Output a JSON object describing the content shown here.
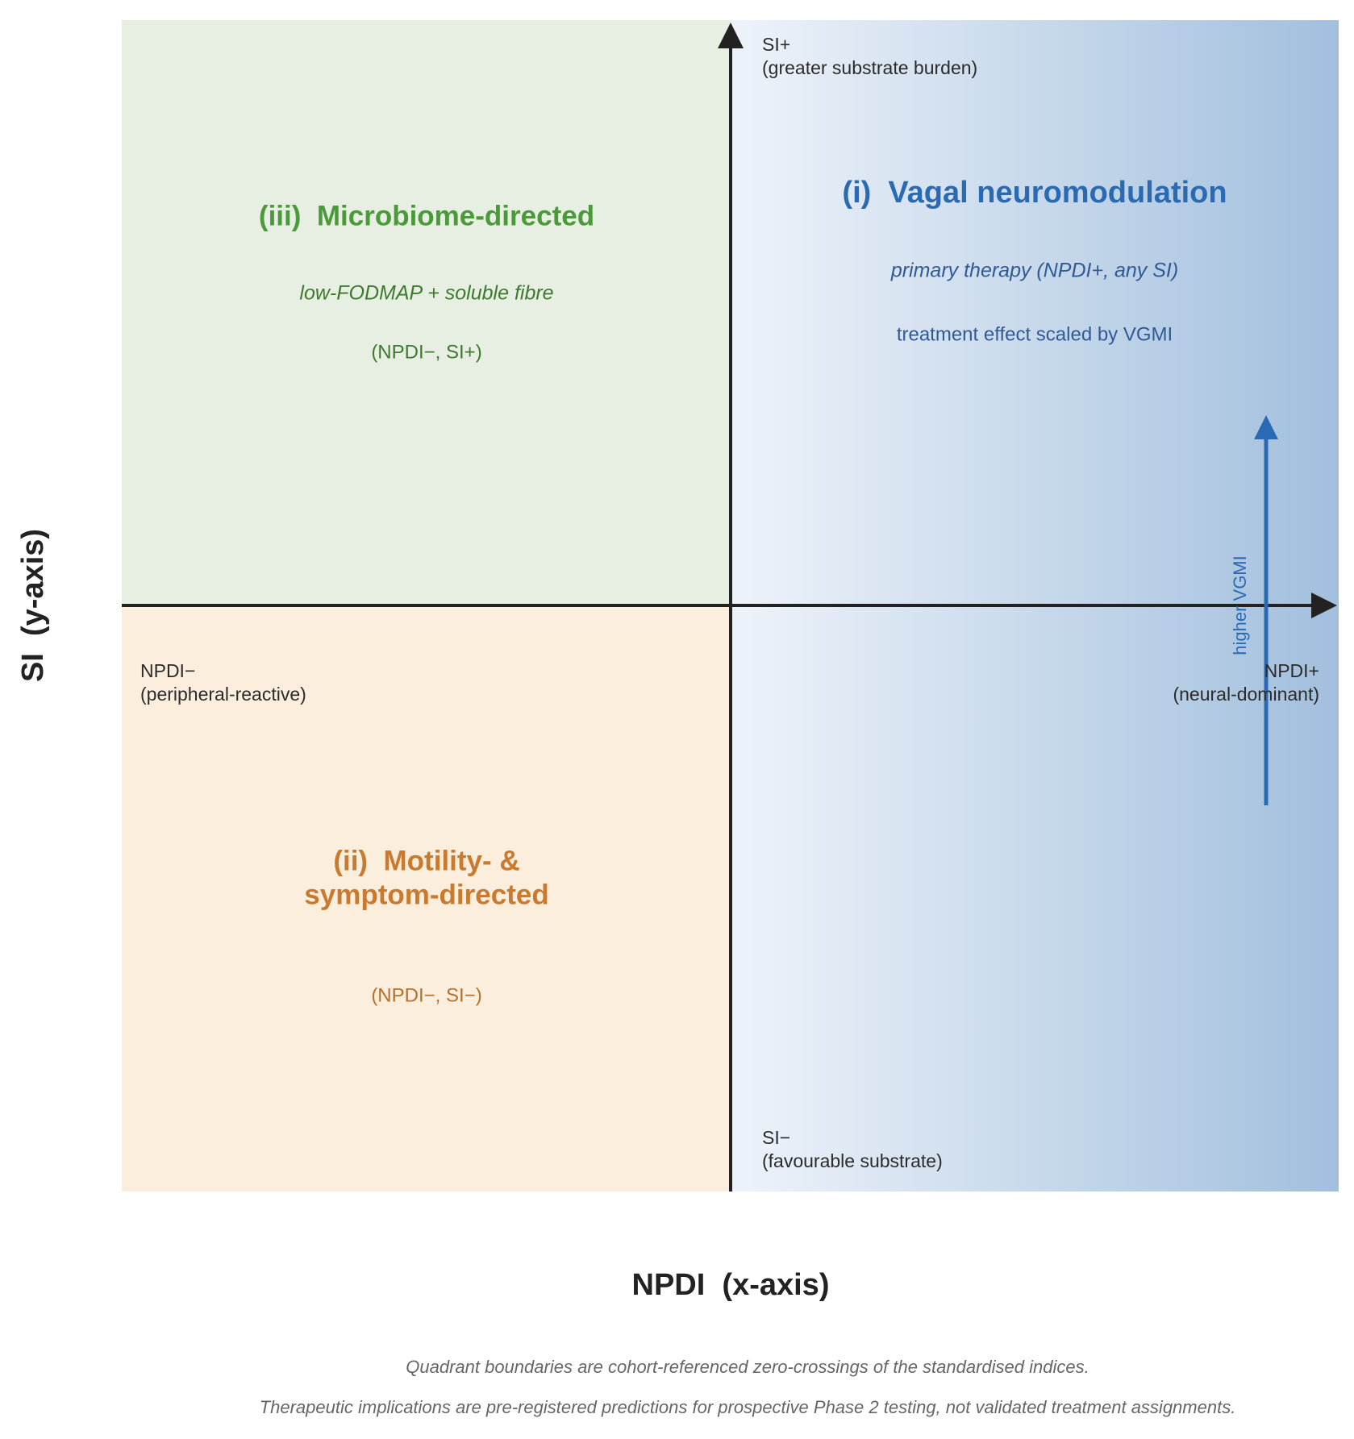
{
  "axes": {
    "y_top": {
      "line1": "SI+",
      "line2": "(greater substrate burden)"
    },
    "y_bottom": {
      "line1": "SI−",
      "line2": "(favourable substrate)"
    },
    "x_left": {
      "line1": "NPDI−",
      "line2": "(peripheral-reactive)"
    },
    "x_right": {
      "line1": "NPDI+",
      "line2": "(neural-dominant)"
    },
    "x_title": "NPDI  (x-axis)",
    "y_title": "SI  (y-axis)"
  },
  "quadrants": {
    "upper_left": {
      "title": "(iii)  Microbiome-directed",
      "subtitle": "low-FODMAP + soluble fibre",
      "code": "(NPDI−, SI+)"
    },
    "lower_left": {
      "title_line1": "(ii)  Motility- &",
      "title_line2": "symptom-directed",
      "code": "(NPDI−, SI−)"
    },
    "right": {
      "title": "(i)  Vagal neuromodulation",
      "subtitle": "primary therapy (NPDI+, any SI)",
      "note": "treatment effect scaled by VGMI",
      "arrow_label": "higher VGMI"
    }
  },
  "footnotes": [
    "Quadrant boundaries are cohort-referenced zero-crossings of the standardised indices.",
    "Therapeutic implications are pre-registered predictions for prospective Phase 2 testing, not validated treatment assignments."
  ]
}
